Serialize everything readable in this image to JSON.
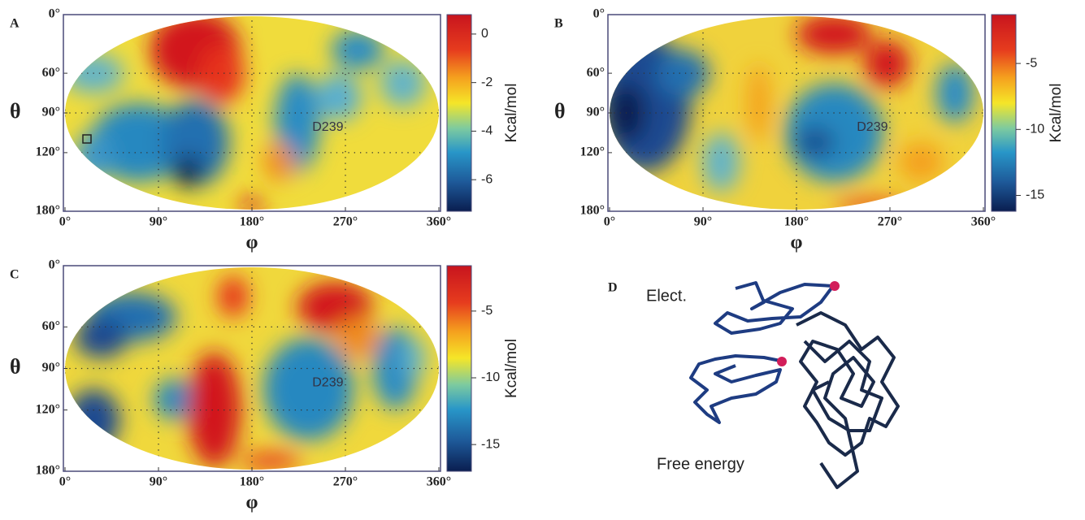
{
  "panels": [
    {
      "label": "A",
      "theta_label": "θ",
      "phi_label": "φ",
      "colorbar_label": "Kcal/mol",
      "annotation": "D239",
      "theta_ticks": [
        {
          "value": 0,
          "label": "0°"
        },
        {
          "value": 60,
          "label": "60°"
        },
        {
          "value": 90,
          "label": "90°"
        },
        {
          "value": 120,
          "label": "120°"
        },
        {
          "value": 180,
          "label": "180°"
        }
      ],
      "phi_ticks": [
        {
          "value": 0,
          "label": "0°"
        },
        {
          "value": 90,
          "label": "90°"
        },
        {
          "value": 180,
          "label": "180°"
        },
        {
          "value": 270,
          "label": "270°"
        },
        {
          "value": 360,
          "label": "360°"
        }
      ],
      "clim": [
        -7.3,
        0.8
      ],
      "cticks": [
        0,
        -2,
        -4,
        -6
      ]
    },
    {
      "label": "B",
      "theta_label": "θ",
      "phi_label": "φ",
      "colorbar_label": "Kcal/mol",
      "annotation": "D239",
      "theta_ticks": [
        {
          "value": 0,
          "label": "0°"
        },
        {
          "value": 60,
          "label": "60°"
        },
        {
          "value": 90,
          "label": "90°"
        },
        {
          "value": 120,
          "label": "120°"
        },
        {
          "value": 180,
          "label": "180°"
        }
      ],
      "phi_ticks": [
        {
          "value": 0,
          "label": "0°"
        },
        {
          "value": 90,
          "label": "90°"
        },
        {
          "value": 180,
          "label": "180°"
        },
        {
          "value": 270,
          "label": "270°"
        },
        {
          "value": 360,
          "label": "360°"
        }
      ],
      "clim": [
        -16.2,
        -1.3
      ],
      "cticks": [
        -5,
        -10,
        -15
      ]
    },
    {
      "label": "C",
      "theta_label": "θ",
      "phi_label": "φ",
      "colorbar_label": "Kcal/mol",
      "annotation": "D239",
      "theta_ticks": [
        {
          "value": 0,
          "label": "0°"
        },
        {
          "value": 60,
          "label": "60°"
        },
        {
          "value": 90,
          "label": "90°"
        },
        {
          "value": 120,
          "label": "120°"
        },
        {
          "value": 180,
          "label": "180°"
        }
      ],
      "phi_ticks": [
        {
          "value": 0,
          "label": "0°"
        },
        {
          "value": 90,
          "label": "90°"
        },
        {
          "value": 180,
          "label": "180°"
        },
        {
          "value": 270,
          "label": "270°"
        },
        {
          "value": 360,
          "label": "360°"
        }
      ],
      "clim": [
        -17,
        -1.6
      ],
      "cticks": [
        -5,
        -10,
        -15
      ]
    }
  ],
  "panel_d": {
    "label": "D",
    "labels": [
      "Elect.",
      "Free energy"
    ]
  }
}
